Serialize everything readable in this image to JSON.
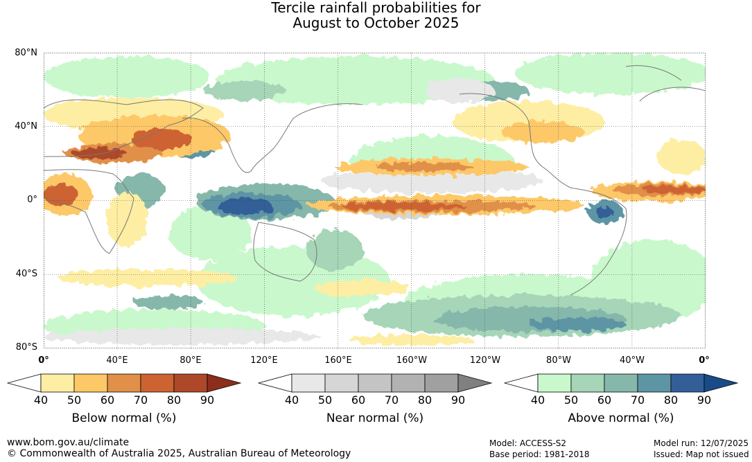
{
  "title": {
    "line1": "Tercile rainfall probabilities for",
    "line2": "August to October 2025"
  },
  "map": {
    "lat_labels": [
      "80°N",
      "40°N",
      "0°",
      "40°S",
      "80°S"
    ],
    "lat_values": [
      80,
      40,
      0,
      -40,
      -80
    ],
    "lon_labels": [
      "0°",
      "40°E",
      "80°E",
      "120°E",
      "160°E",
      "160°W",
      "120°W",
      "80°W",
      "40°W",
      "0°"
    ],
    "lon_values": [
      0,
      40,
      80,
      120,
      160,
      200,
      240,
      280,
      320,
      360
    ],
    "lat_range": [
      -80,
      80
    ],
    "lon_range": [
      0,
      360
    ],
    "gridlines": "dotted",
    "ocean_color": "#ffffff",
    "coastline_color": "#777777"
  },
  "legends": {
    "below": {
      "title": "Below normal (%)",
      "ticks": [
        "40",
        "50",
        "60",
        "70",
        "80",
        "90"
      ],
      "colors": [
        "#ffffff",
        "#fdeea3",
        "#fdc868",
        "#e09049",
        "#cd6331",
        "#ad4929",
        "#8c2e1b"
      ]
    },
    "near": {
      "title": "Near normal (%)",
      "ticks": [
        "40",
        "50",
        "60",
        "70",
        "80",
        "90"
      ],
      "colors": [
        "#ffffff",
        "#e8e8e8",
        "#d6d6d6",
        "#c4c4c4",
        "#b2b2b2",
        "#a0a0a0",
        "#808080"
      ]
    },
    "above": {
      "title": "Above normal (%)",
      "ticks": [
        "40",
        "50",
        "60",
        "70",
        "80",
        "90"
      ],
      "colors": [
        "#ffffff",
        "#c9f8cc",
        "#a6d5b8",
        "#86b7ab",
        "#5d95a5",
        "#335f98",
        "#184b87"
      ]
    }
  },
  "footer": {
    "website": "www.bom.gov.au/climate",
    "copyright": "© Commonwealth of Australia 2025, Australian Bureau of Meteorology",
    "model": "Model: ACCESS-S2",
    "base_period": "Base period: 1981-2018",
    "model_run": "Model run: 12/07/2025",
    "issued": "Issued: Map not issued"
  }
}
